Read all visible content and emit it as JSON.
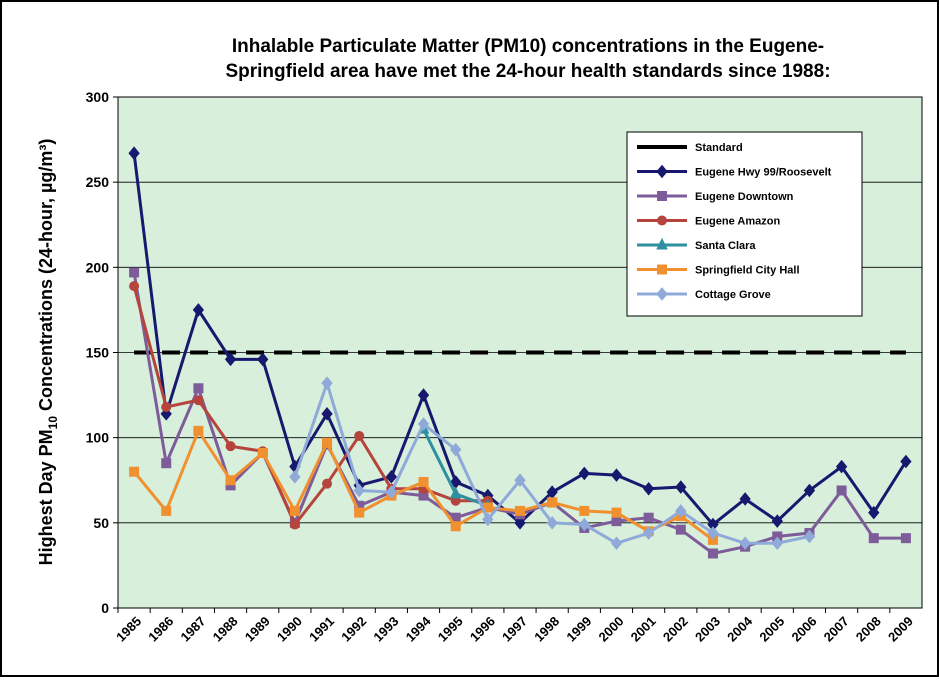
{
  "chart_data": {
    "type": "line",
    "title": [
      "Inhalable Particulate Matter (PM10) concentrations in the Eugene-",
      "Springfield area have met the 24-hour health standards since 1988:"
    ],
    "y_label": [
      "Highest Day PM",
      "10",
      " Concentrations (24-hour, µg/m³)"
    ],
    "categories": [
      "1985",
      "1986",
      "1987",
      "1988",
      "1989",
      "1990",
      "1991",
      "1992",
      "1993",
      "1994",
      "1995",
      "1996",
      "1997",
      "1998",
      "1999",
      "2000",
      "2001",
      "2002",
      "2003",
      "2004",
      "2005",
      "2006",
      "2007",
      "2008",
      "2009"
    ],
    "ylim": [
      0,
      300
    ],
    "yticks": [
      0,
      50,
      100,
      150,
      200,
      250,
      300
    ],
    "grid": true,
    "legend_position": "upper right",
    "series": [
      {
        "name": "Standard",
        "color": "#000000",
        "marker": "none",
        "dashed": true,
        "values": [
          150,
          150,
          150,
          150,
          150,
          150,
          150,
          150,
          150,
          150,
          150,
          150,
          150,
          150,
          150,
          150,
          150,
          150,
          150,
          150,
          150,
          150,
          150,
          150,
          150
        ]
      },
      {
        "name": "Eugene Hwy 99/Roosevelt",
        "color": "#17186e",
        "marker": "diamond",
        "values": [
          267,
          114,
          175,
          146,
          146,
          83,
          114,
          72,
          77,
          125,
          74,
          66,
          50,
          68,
          79,
          78,
          70,
          71,
          49,
          64,
          51,
          69,
          83,
          56,
          86
        ]
      },
      {
        "name": "Eugene Downtown",
        "color": "#7d5c99",
        "marker": "square",
        "values": [
          197,
          85,
          129,
          72,
          91,
          50,
          96,
          60,
          68,
          66,
          53,
          59,
          55,
          62,
          47,
          51,
          53,
          46,
          32,
          36,
          42,
          44,
          69,
          41,
          41
        ]
      },
      {
        "name": "Eugene Amazon",
        "color": "#b5443c",
        "marker": "circle",
        "values": [
          189,
          118,
          122,
          95,
          92,
          49,
          73,
          101,
          70,
          70,
          63,
          63,
          null,
          null,
          null,
          null,
          null,
          null,
          null,
          null,
          null,
          null,
          null,
          null,
          null
        ]
      },
      {
        "name": "Santa Clara",
        "color": "#2e8fa0",
        "marker": "triangle",
        "values": [
          null,
          null,
          null,
          null,
          null,
          null,
          null,
          null,
          null,
          105,
          67,
          60,
          null,
          null,
          null,
          null,
          null,
          null,
          null,
          null,
          null,
          null,
          null,
          null,
          null
        ]
      },
      {
        "name": "Springfield City Hall",
        "color": "#f0902f",
        "marker": "square",
        "values": [
          80,
          57,
          104,
          75,
          91,
          57,
          97,
          56,
          66,
          74,
          48,
          59,
          57,
          62,
          57,
          56,
          45,
          54,
          40,
          null,
          null,
          null,
          null,
          null,
          null
        ]
      },
      {
        "name": "Cottage Grove",
        "color": "#8faad8",
        "marker": "diamond",
        "values": [
          null,
          null,
          null,
          null,
          null,
          77,
          132,
          69,
          68,
          108,
          93,
          52,
          75,
          50,
          49,
          38,
          44,
          57,
          44,
          38,
          38,
          42,
          null,
          null,
          null
        ]
      }
    ]
  }
}
